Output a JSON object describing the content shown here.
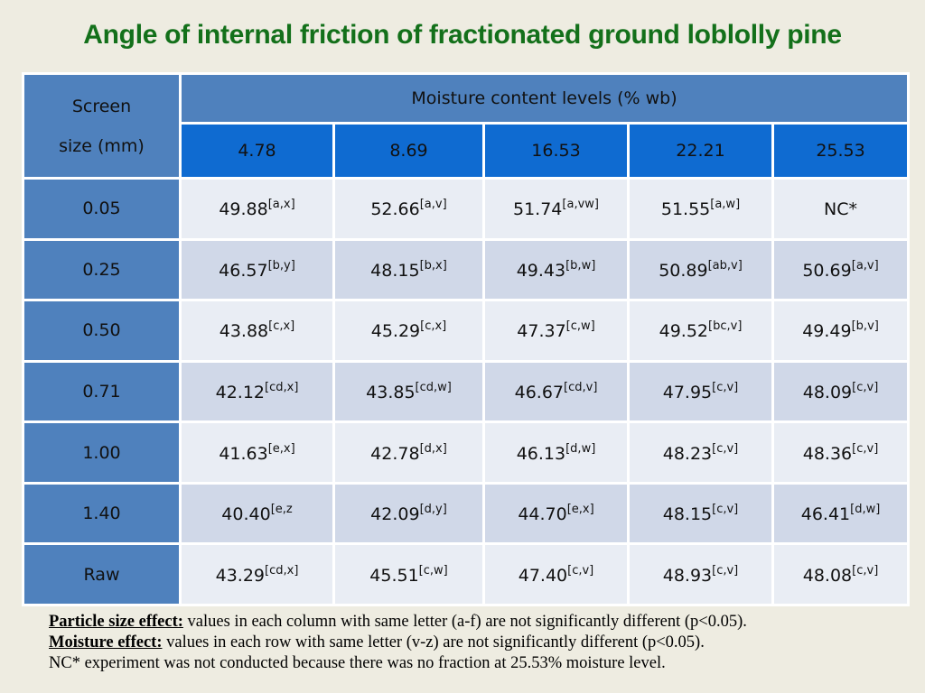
{
  "title": "Angle of internal friction of fractionated ground loblolly pine",
  "table": {
    "corner_line1": "Screen",
    "corner_line2": "size (mm)",
    "group_header": "Moisture content levels (% wb)",
    "moisture_levels": [
      "4.78",
      "8.69",
      "16.53",
      "22.21",
      "25.53"
    ],
    "rows": [
      {
        "size": "0.05",
        "cells": [
          {
            "v": "49.88",
            "s": "[a,x]"
          },
          {
            "v": "52.66",
            "s": "[a,v]"
          },
          {
            "v": "51.74",
            "s": "[a,vw]"
          },
          {
            "v": "51.55",
            "s": "[a,w]"
          },
          {
            "v": "NC*",
            "s": ""
          }
        ]
      },
      {
        "size": "0.25",
        "cells": [
          {
            "v": "46.57",
            "s": "[b,y]"
          },
          {
            "v": "48.15",
            "s": "[b,x]"
          },
          {
            "v": "49.43",
            "s": "[b,w]"
          },
          {
            "v": "50.89",
            "s": "[ab,v]"
          },
          {
            "v": "50.69",
            "s": "[a,v]"
          }
        ]
      },
      {
        "size": "0.50",
        "cells": [
          {
            "v": "43.88",
            "s": "[c,x]"
          },
          {
            "v": "45.29",
            "s": "[c,x]"
          },
          {
            "v": "47.37",
            "s": "[c,w]"
          },
          {
            "v": "49.52",
            "s": "[bc,v]"
          },
          {
            "v": "49.49",
            "s": "[b,v]"
          }
        ]
      },
      {
        "size": "0.71",
        "cells": [
          {
            "v": "42.12",
            "s": "[cd,x]"
          },
          {
            "v": "43.85",
            "s": "[cd,w]"
          },
          {
            "v": "46.67",
            "s": "[cd,v]"
          },
          {
            "v": "47.95",
            "s": "[c,v]"
          },
          {
            "v": "48.09",
            "s": "[c,v]"
          }
        ]
      },
      {
        "size": "1.00",
        "cells": [
          {
            "v": "41.63",
            "s": "[e,x]"
          },
          {
            "v": "42.78",
            "s": "[d,x]"
          },
          {
            "v": "46.13",
            "s": "[d,w]"
          },
          {
            "v": "48.23",
            "s": "[c,v]"
          },
          {
            "v": "48.36",
            "s": "[c,v]"
          }
        ]
      },
      {
        "size": "1.40",
        "cells": [
          {
            "v": "40.40",
            "s": "[e,z"
          },
          {
            "v": "42.09",
            "s": "[d,y]"
          },
          {
            "v": "44.70",
            "s": "[e,x]"
          },
          {
            "v": "48.15",
            "s": "[c,v]"
          },
          {
            "v": "46.41",
            "s": "[d,w]"
          }
        ]
      },
      {
        "size": "Raw",
        "cells": [
          {
            "v": "43.29",
            "s": "[cd,x]"
          },
          {
            "v": "45.51",
            "s": "[c,w]"
          },
          {
            "v": "47.40",
            "s": "[c,v]"
          },
          {
            "v": "48.93",
            "s": "[c,v]"
          },
          {
            "v": "48.08",
            "s": "[c,v]"
          }
        ]
      }
    ]
  },
  "notes": {
    "particle_label": "Particle size effect:",
    "particle_text": " values in each column with same letter (a-f) are not significantly different (p<0.05).",
    "moisture_label": "Moisture effect:",
    "moisture_text": " values in each row with same letter (v-z) are not significantly different (p<0.05).",
    "nc_text": "NC* experiment was not conducted because there was no fraction at 25.53% moisture level."
  }
}
